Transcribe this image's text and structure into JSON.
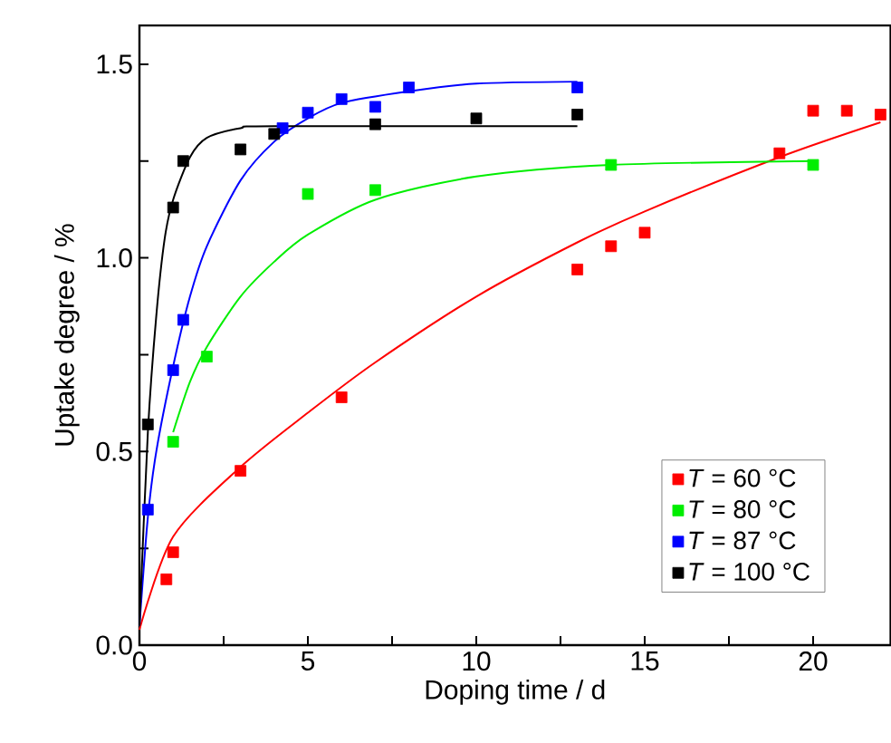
{
  "chart_data": {
    "type": "scatter",
    "xlabel": "Doping time / d",
    "ylabel": "Uptake degree / %",
    "xlim": [
      0,
      22.3
    ],
    "ylim": [
      0,
      1.6
    ],
    "xticks": [
      0,
      {
        "value": 2.5,
        "label": null
      },
      5,
      {
        "value": 7.5,
        "label": null
      },
      10,
      {
        "value": 12.5,
        "label": null
      },
      15,
      {
        "value": 17.5,
        "label": null
      },
      20
    ],
    "yticks": [
      {
        "value": 0,
        "label": "0.0"
      },
      {
        "value": 0.25,
        "label": null
      },
      0.5,
      {
        "value": 0.75,
        "label": null
      },
      {
        "value": 1,
        "label": "1.0"
      },
      {
        "value": 1.25,
        "label": null
      },
      1.5
    ],
    "marker": "square",
    "legend": "bottom right",
    "series": [
      {
        "type": "line",
        "marker": "none",
        "color": "#ff0000",
        "x": [
          0,
          1,
          3,
          5,
          7,
          10,
          13,
          15,
          19,
          22
        ],
        "values": [
          0.04,
          0.28,
          0.46,
          0.6,
          0.73,
          0.9,
          1.04,
          1.12,
          1.26,
          1.35
        ]
      },
      {
        "type": "line",
        "marker": "none",
        "color": "#00ee00",
        "x": [
          1,
          1.5,
          2,
          3,
          4,
          5,
          7,
          10,
          14,
          20
        ],
        "values": [
          0.55,
          0.68,
          0.77,
          0.9,
          0.99,
          1.06,
          1.15,
          1.21,
          1.24,
          1.25
        ]
      },
      {
        "type": "line",
        "marker": "none",
        "color": "#0000ff",
        "x": [
          0,
          0.25,
          0.5,
          1,
          1.5,
          2,
          3,
          4,
          5,
          6,
          8,
          10,
          13
        ],
        "values": [
          0.05,
          0.33,
          0.5,
          0.72,
          0.9,
          1.03,
          1.2,
          1.3,
          1.36,
          1.4,
          1.43,
          1.45,
          1.455
        ]
      },
      {
        "type": "line",
        "marker": "none",
        "color": "#000000",
        "x": [
          0,
          0.25,
          0.5,
          0.75,
          1,
          1.5,
          2,
          3,
          4,
          13
        ],
        "values": [
          0.05,
          0.55,
          0.85,
          1.05,
          1.15,
          1.26,
          1.31,
          1.335,
          1.34,
          1.34
        ]
      },
      {
        "name": "*T* = 60 °C",
        "color": "#ff0000",
        "x": [
          0.8,
          1,
          3,
          6,
          13,
          14,
          15,
          19,
          20,
          21,
          22
        ],
        "values": [
          0.17,
          0.24,
          0.45,
          0.64,
          0.97,
          1.03,
          1.065,
          1.27,
          1.38,
          1.38,
          1.37
        ]
      },
      {
        "name": "*T* = 80 °C",
        "color": "#00ee00",
        "x": [
          1,
          2,
          5,
          7,
          14,
          20
        ],
        "values": [
          0.525,
          0.745,
          1.165,
          1.175,
          1.24,
          1.24
        ]
      },
      {
        "name": "*T* = 87 °C",
        "color": "#0000ff",
        "x": [
          0.25,
          1,
          1.3,
          4.25,
          5,
          6,
          7,
          8,
          13
        ],
        "values": [
          0.35,
          0.71,
          0.84,
          1.335,
          1.375,
          1.41,
          1.39,
          1.44,
          1.44
        ]
      },
      {
        "name": "*T* = 100 °C",
        "color": "#000000",
        "x": [
          0.25,
          1,
          1.3,
          3,
          4,
          7,
          10,
          13
        ],
        "values": [
          0.57,
          1.13,
          1.25,
          1.28,
          1.32,
          1.345,
          1.36,
          1.37
        ]
      }
    ]
  }
}
